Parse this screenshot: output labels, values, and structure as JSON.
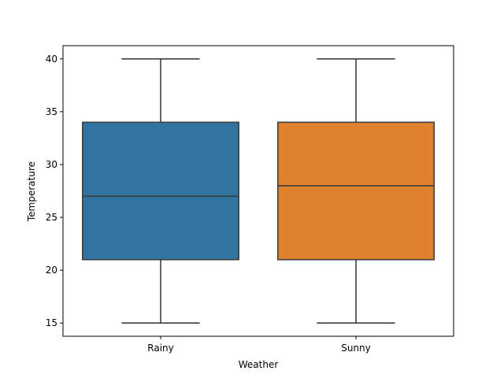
{
  "chart_data": {
    "type": "box",
    "title": "",
    "xlabel": "Weather",
    "ylabel": "Temperature",
    "categories": [
      "Rainy",
      "Sunny"
    ],
    "boxes": [
      {
        "category": "Rainy",
        "min": 15,
        "q1": 21,
        "median": 27,
        "q3": 34,
        "max": 40,
        "color": "#3274a1"
      },
      {
        "category": "Sunny",
        "min": 15,
        "q1": 21,
        "median": 28,
        "q3": 34,
        "max": 40,
        "color": "#e1812c"
      }
    ],
    "ylim": [
      13.75,
      41.25
    ],
    "yticks": [
      15,
      20,
      25,
      30,
      35,
      40
    ],
    "grid": false,
    "legend": "none",
    "line_color": "#3f3f3f"
  }
}
